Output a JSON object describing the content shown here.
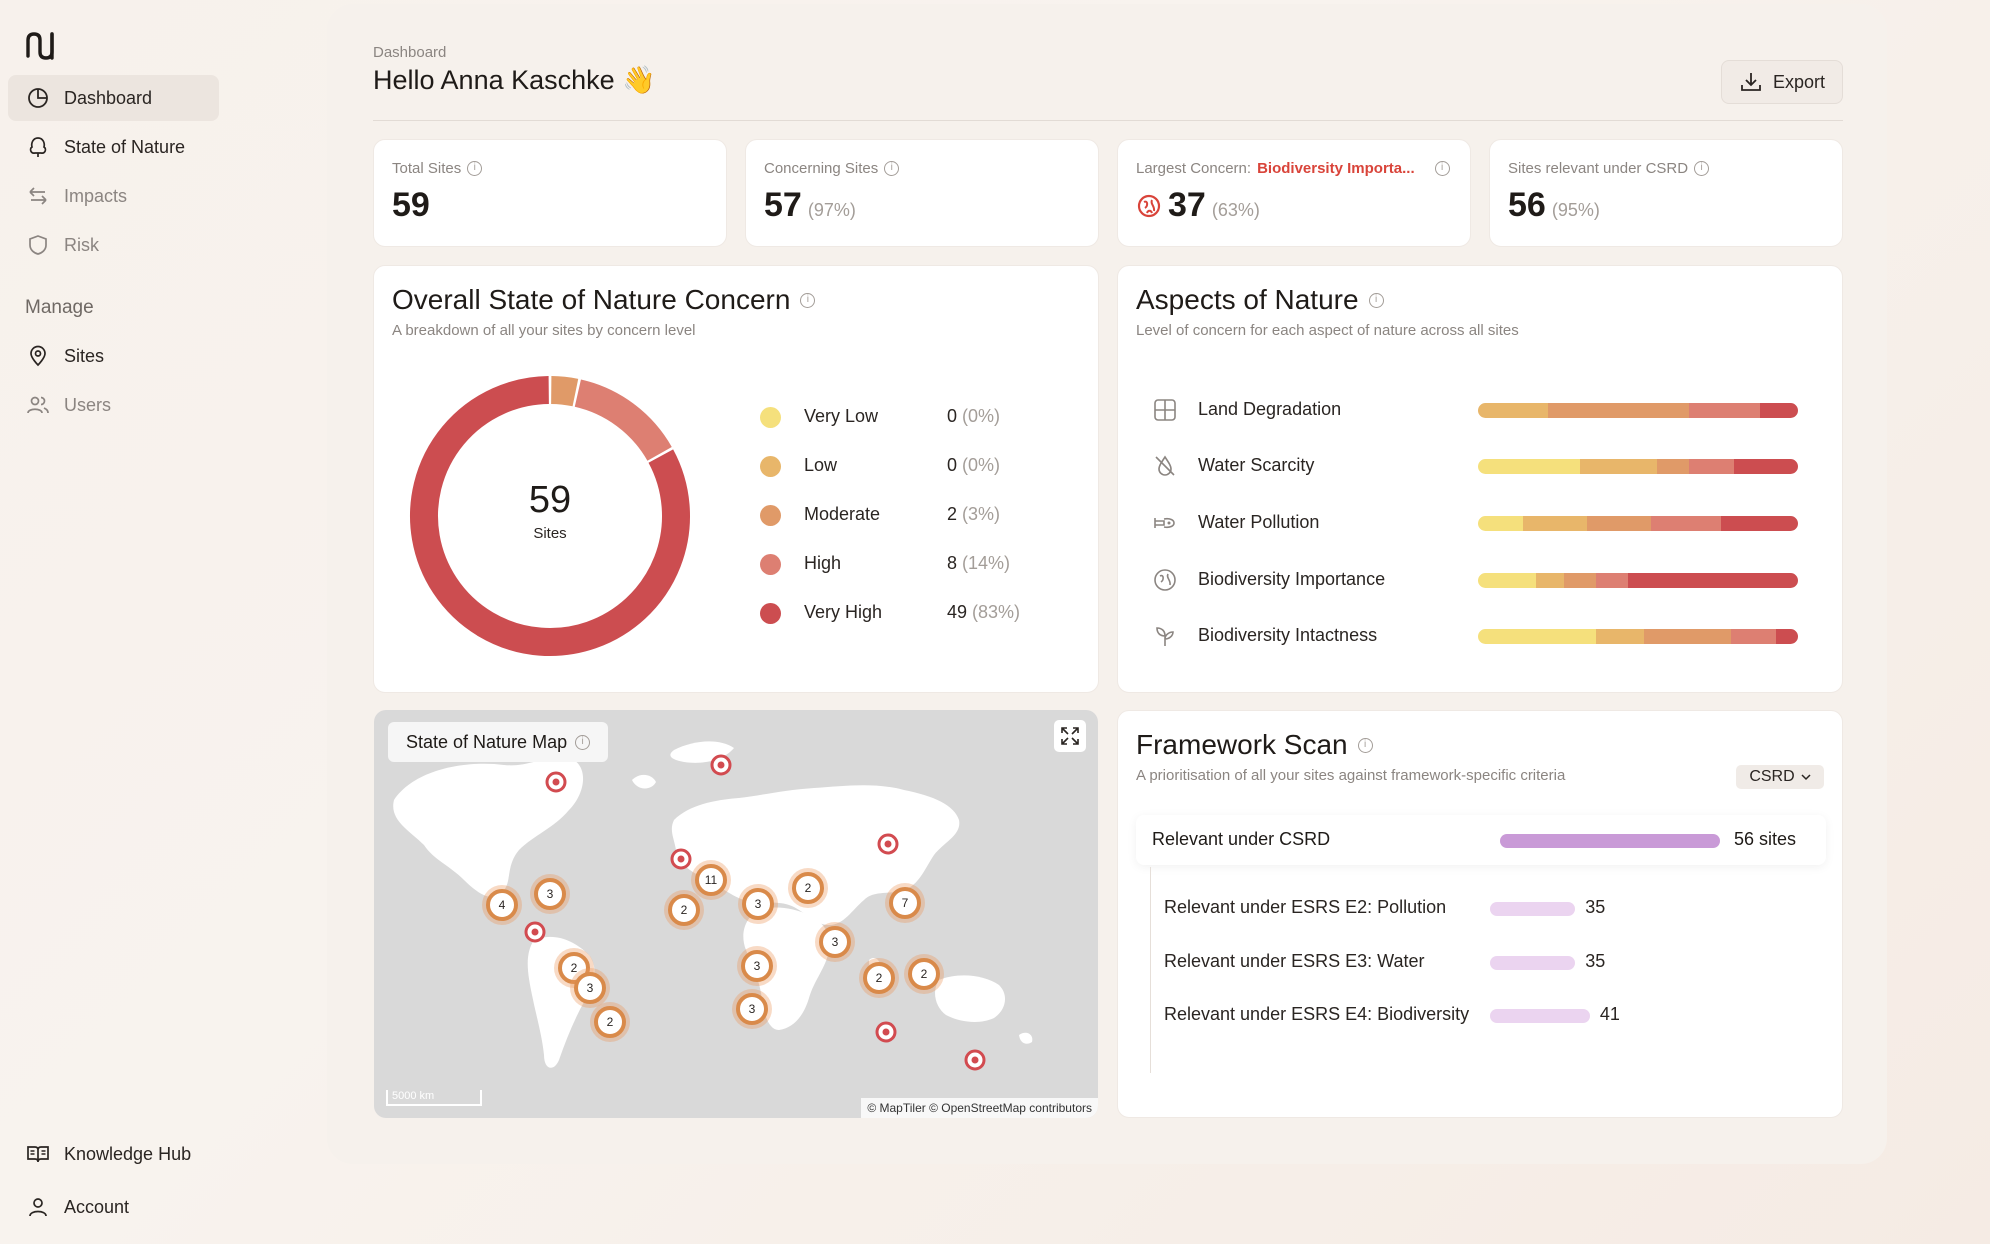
{
  "sidebar": {
    "logo_alt": "NU",
    "items": [
      {
        "label": "Dashboard",
        "icon": "pie-chart-icon"
      },
      {
        "label": "State of Nature",
        "icon": "tree-icon"
      },
      {
        "label": "Impacts",
        "icon": "arrows-swap-icon"
      },
      {
        "label": "Risk",
        "icon": "shield-icon"
      }
    ],
    "manage_heading": "Manage",
    "manage_items": [
      {
        "label": "Sites",
        "icon": "location-pin-icon"
      },
      {
        "label": "Users",
        "icon": "users-icon"
      }
    ],
    "bottom_items": [
      {
        "label": "Knowledge Hub",
        "icon": "book-icon"
      },
      {
        "label": "Account",
        "icon": "user-icon"
      }
    ]
  },
  "header": {
    "breadcrumb": "Dashboard",
    "greeting": "Hello Anna Kaschke",
    "greeting_emoji": "👋",
    "export_label": "Export"
  },
  "stats": [
    {
      "label": "Total Sites",
      "value": "59",
      "pct": ""
    },
    {
      "label": "Concerning Sites",
      "value": "57",
      "pct": "(97%)"
    },
    {
      "label": "Largest Concern:",
      "highlight": "Biodiversity Importa...",
      "value": "37",
      "pct": "(63%)"
    },
    {
      "label": "Sites relevant under CSRD",
      "value": "56",
      "pct": "(95%)"
    }
  ],
  "concern": {
    "title": "Overall State of Nature Concern",
    "subtitle": "A breakdown of all your sites by concern level",
    "center_value": "59",
    "center_label": "Sites",
    "levels": [
      {
        "name": "Very Low",
        "count": "0",
        "pct": "(0%)",
        "value": 0,
        "color": "#f5e07c"
      },
      {
        "name": "Low",
        "count": "0",
        "pct": "(0%)",
        "value": 0,
        "color": "#e8b66a"
      },
      {
        "name": "Moderate",
        "count": "2",
        "pct": "(3%)",
        "value": 2,
        "color": "#e09a68"
      },
      {
        "name": "High",
        "count": "8",
        "pct": "(14%)",
        "value": 8,
        "color": "#dd7f72"
      },
      {
        "name": "Very High",
        "count": "49",
        "pct": "(83%)",
        "value": 49,
        "color": "#cc4d50"
      }
    ]
  },
  "aspects": {
    "title": "Aspects of Nature",
    "subtitle": "Level of concern for each aspect of nature across all sites",
    "items": [
      {
        "label": "Land Degradation",
        "icon": "grid-icon",
        "segments": [
          22,
          44,
          22,
          12
        ]
      },
      {
        "label": "Water Scarcity",
        "icon": "no-water-icon",
        "segments": [
          32,
          24,
          10,
          14,
          20
        ]
      },
      {
        "label": "Water Pollution",
        "icon": "pipe-icon",
        "segments": [
          14,
          20,
          20,
          22,
          24
        ]
      },
      {
        "label": "Biodiversity Importance",
        "icon": "leaf-globe-icon",
        "segments": [
          18,
          9,
          10,
          10,
          53
        ]
      },
      {
        "label": "Biodiversity Intactness",
        "icon": "plant-icon",
        "segments": [
          37,
          15,
          27,
          14,
          7
        ]
      }
    ],
    "segment_colors": [
      "#f5e07c",
      "#e8b66a",
      "#e09a68",
      "#dd7f72",
      "#cc4d50"
    ]
  },
  "map": {
    "title": "State of Nature Map",
    "attribution": "© MapTiler © OpenStreetMap contributors",
    "scale_label": "5000 km",
    "clusters": [
      "4",
      "3",
      "2",
      "3",
      "2",
      "11",
      "2",
      "3",
      "2",
      "3",
      "3",
      "3",
      "7",
      "2",
      "2"
    ]
  },
  "framework": {
    "title": "Framework Scan",
    "subtitle": "A prioritisation of all your sites against framework-specific criteria",
    "select_value": "CSRD",
    "main": {
      "label": "Relevant under CSRD",
      "value": "56 sites",
      "count": 56
    },
    "rows": [
      {
        "label": "Relevant under ESRS E2: Pollution",
        "value": "35",
        "count": 35
      },
      {
        "label": "Relevant under ESRS E3: Water",
        "value": "35",
        "count": 35
      },
      {
        "label": "Relevant under ESRS E4: Biodiversity",
        "value": "41",
        "count": 41
      }
    ]
  }
}
